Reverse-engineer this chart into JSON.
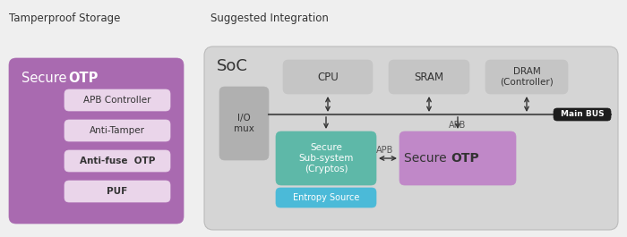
{
  "fig_bg": "#efefef",
  "soc_bg": "#d5d5d5",
  "purple_main": "#a96ab0",
  "sub_box_color": "#ead5ea",
  "io_mux_color": "#b0b0b0",
  "cpu_color": "#c5c5c5",
  "sram_color": "#c5c5c5",
  "dram_color": "#c5c5c5",
  "crypto_color": "#5eb8a8",
  "entropy_color": "#4bbad8",
  "secure_otp2_color": "#c088c8",
  "main_bus_bg": "#1c1c1c",
  "main_bus_fg": "#ffffff",
  "bus_line": "#555555",
  "arrow_color": "#333333",
  "text_dark": "#333333",
  "text_white": "#ffffff",
  "title1": "Tamperproof Storage",
  "title2": "Suggested Integration",
  "soc_label": "SoC",
  "io_label": "I/O\nmux",
  "cpu_label": "CPU",
  "sram_label": "SRAM",
  "dram_label": "DRAM\n(Controller)",
  "bus_label": "Main BUS",
  "crypto_label": "Secure\nSub-system\n(Cryptos)",
  "entropy_label": "Entropy Source",
  "apb_label": "APB",
  "sub_items": [
    "APB Controller",
    "Anti-Tamper",
    "Anti-fuse  OTP",
    "PUF"
  ],
  "sub_bold": [
    false,
    false,
    true,
    true
  ]
}
